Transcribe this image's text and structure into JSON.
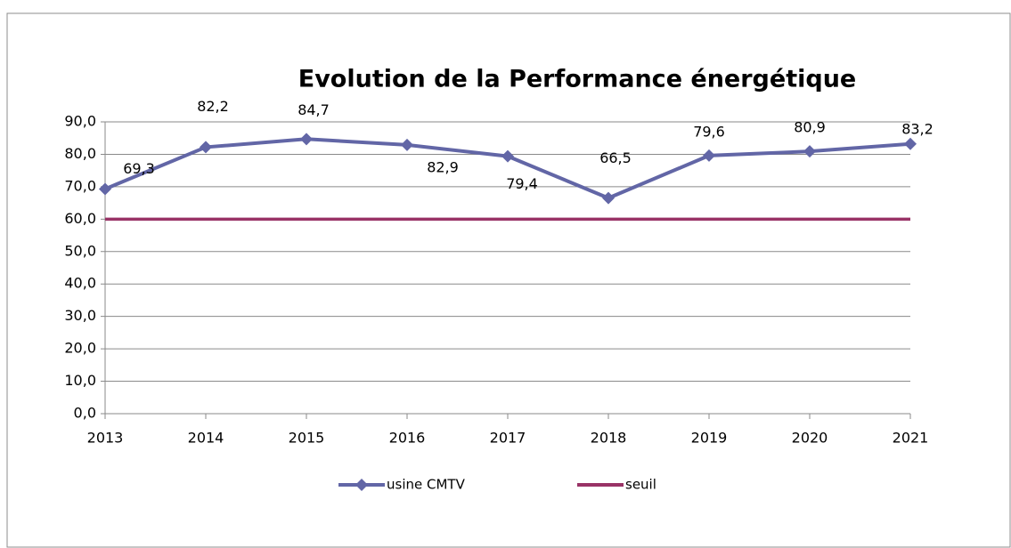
{
  "chart_data": {
    "type": "line",
    "title": "Evolution de la Performance énergétique",
    "categories": [
      "2013",
      "2014",
      "2015",
      "2016",
      "2017",
      "2018",
      "2019",
      "2020",
      "2021"
    ],
    "series": [
      {
        "name": "usine CMTV",
        "color": "#6266a6",
        "marker": "diamond",
        "values": [
          69.3,
          82.2,
          84.7,
          82.9,
          79.4,
          66.5,
          79.6,
          80.9,
          83.2
        ],
        "value_labels": [
          "69,3",
          "82,2",
          "84,7",
          "82,9",
          "79,4",
          "66,5",
          "79,6",
          "80,9",
          "83,2"
        ]
      },
      {
        "name": "seuil",
        "color": "#993366",
        "values": [
          60,
          60,
          60,
          60,
          60,
          60,
          60,
          60,
          60
        ]
      }
    ],
    "ylim": [
      0,
      90
    ],
    "yticks": [
      {
        "value": 0,
        "label": "0,0"
      },
      {
        "value": 10,
        "label": "10,0"
      },
      {
        "value": 20,
        "label": "20,0"
      },
      {
        "value": 30,
        "label": "30,0"
      },
      {
        "value": 40,
        "label": "40,0"
      },
      {
        "value": 50,
        "label": "50,0"
      },
      {
        "value": 60,
        "label": "60,0"
      },
      {
        "value": 70,
        "label": "70,0"
      },
      {
        "value": 80,
        "label": "80,0"
      },
      {
        "value": 90,
        "label": "90,0"
      }
    ],
    "grid": true,
    "legend": "bottom"
  }
}
